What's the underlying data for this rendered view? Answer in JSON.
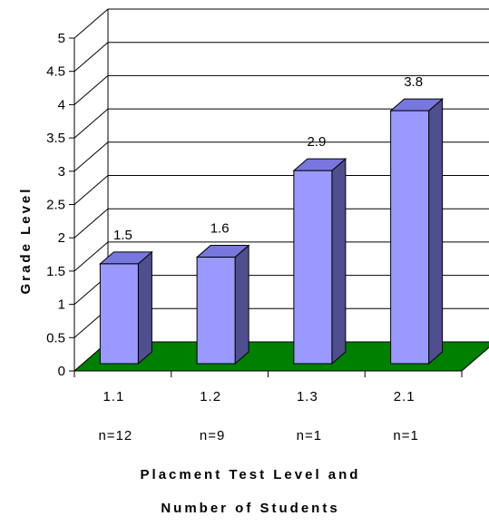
{
  "chart_data": {
    "type": "bar",
    "categories": [
      "1.1",
      "1.2",
      "1.3",
      "2.1"
    ],
    "category_sublabels": [
      "n=12",
      "n=9",
      "n=1",
      "n=1"
    ],
    "values": [
      1.5,
      1.6,
      2.9,
      3.8
    ],
    "data_labels": [
      "1.5",
      "1.6",
      "2.9",
      "3.8"
    ],
    "ylabel": "Grade Level",
    "xlabel_lines": [
      "Placment Test Level and",
      "Number of Students"
    ],
    "ylim": [
      0,
      5
    ],
    "yticks": [
      "0",
      "0.5",
      "1",
      "1.5",
      "2",
      "2.5",
      "3",
      "3.5",
      "4",
      "4.5",
      "5"
    ],
    "grid": true,
    "three_d": true,
    "colors": {
      "bar_front": "#9999FF",
      "bar_top": "#7777DD",
      "bar_side": "#4F4F8F",
      "floor": "#008000",
      "grid": "#000000"
    }
  }
}
